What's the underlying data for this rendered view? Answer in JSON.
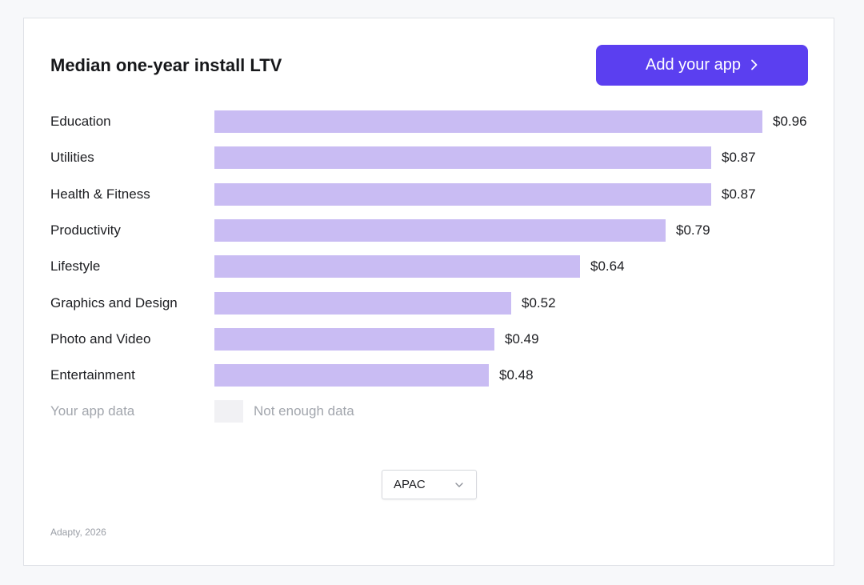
{
  "title": "Median one-year install LTV",
  "cta": {
    "label": "Add your app",
    "icon": "chevron-right-icon"
  },
  "colors": {
    "accent": "#5b3ff0",
    "bar": "#c9bcf3",
    "placeholder": "#f1f1f4"
  },
  "chart_data": {
    "type": "bar",
    "orientation": "horizontal",
    "title": "Median one-year install LTV",
    "categories": [
      "Education",
      "Utilities",
      "Health & Fitness",
      "Productivity",
      "Lifestyle",
      "Graphics and Design",
      "Photo and Video",
      "Entertainment"
    ],
    "values": [
      0.96,
      0.87,
      0.87,
      0.79,
      0.64,
      0.52,
      0.49,
      0.48
    ],
    "value_labels": [
      "$0.96",
      "$0.87",
      "$0.87",
      "$0.79",
      "$0.64",
      "$0.52",
      "$0.49",
      "$0.48"
    ],
    "xlim": [
      0,
      0.96
    ],
    "xlabel": "",
    "ylabel": "",
    "grid": false
  },
  "your_app": {
    "label": "Your app data",
    "status": "Not enough data"
  },
  "region_select": {
    "value": "APAC",
    "icon": "chevron-down-icon"
  },
  "footer": "Adapty, 2026"
}
